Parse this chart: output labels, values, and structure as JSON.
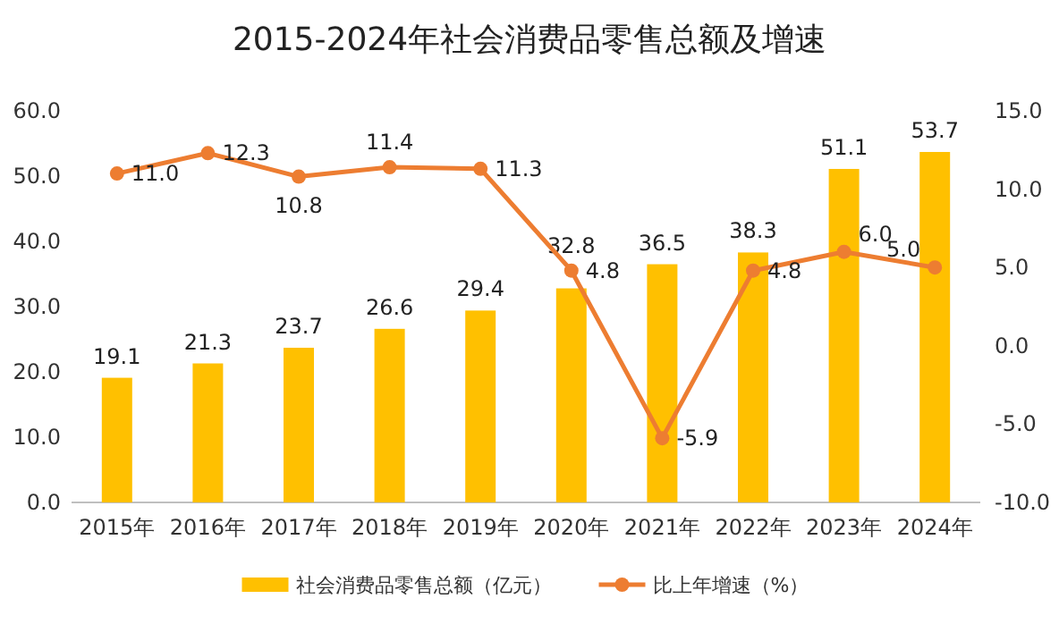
{
  "chart_data": {
    "type": "bar",
    "title": "2015-2024年社会消费品零售总额及增速",
    "categories": [
      "2015年",
      "2016年",
      "2017年",
      "2018年",
      "2019年",
      "2020年",
      "2021年",
      "2022年",
      "2023年",
      "2024年"
    ],
    "series": [
      {
        "name": "社会消费品零售总额（亿元）",
        "color": "#ffc000",
        "values": [
          19.1,
          21.3,
          23.7,
          26.6,
          29.4,
          32.8,
          36.5,
          38.3,
          51.1,
          53.7
        ]
      },
      {
        "name": "比上年增速（%）",
        "type": "line",
        "axis": "y2",
        "color": "#ed7d31",
        "marker": "circle",
        "values": [
          11.0,
          12.3,
          10.8,
          11.4,
          11.3,
          4.8,
          -5.9,
          4.8,
          6.0,
          5.0
        ],
        "value_labels": [
          "11.0",
          "12.3",
          "10.8",
          "11.4",
          "11.3",
          "4.8",
          "-5.9",
          "4.8",
          "6.0",
          "5.0"
        ]
      }
    ],
    "ylim": [
      0,
      60
    ],
    "yticks": [
      {
        "value": 0,
        "label": "0.0"
      },
      {
        "value": 10,
        "label": "10.0"
      },
      {
        "value": 20,
        "label": "20.0"
      },
      {
        "value": 30,
        "label": "30.0"
      },
      {
        "value": 40,
        "label": "40.0"
      },
      {
        "value": 50,
        "label": "50.0"
      },
      {
        "value": 60,
        "label": "60.0"
      }
    ],
    "y2lim": [
      -10,
      15
    ],
    "y2ticks": [
      {
        "value": -10,
        "label": "-10.0"
      },
      {
        "value": -5,
        "label": "-5.0"
      },
      {
        "value": 0,
        "label": "0.0"
      },
      {
        "value": 5,
        "label": "5.0"
      },
      {
        "value": 10,
        "label": "10.0"
      },
      {
        "value": 15,
        "label": "15.0"
      }
    ],
    "data_labels": true,
    "legend": "bottom",
    "grid": false
  }
}
